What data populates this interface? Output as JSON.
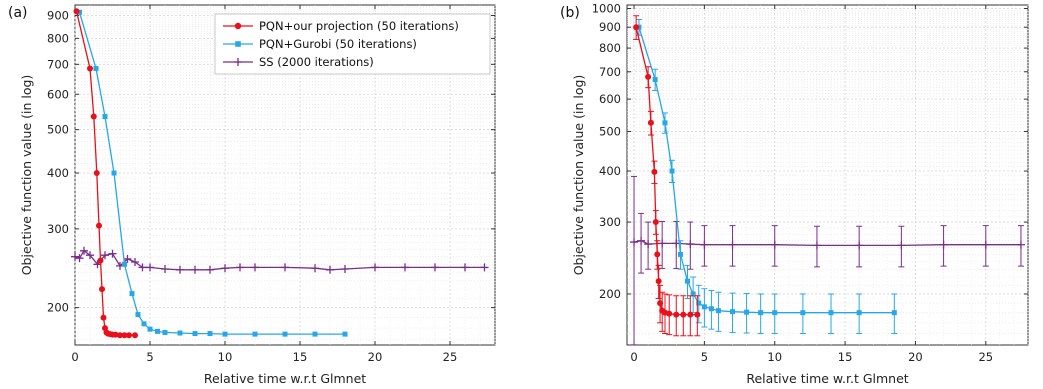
{
  "chart_data": [
    {
      "type": "line",
      "panel_label": "(a)",
      "xlabel": "Relative time w.r.t Glmnet",
      "ylabel": "Objective function value (in log)",
      "xlim": [
        0,
        28
      ],
      "ylim": [
        165,
        950
      ],
      "log_y": true,
      "grid": true,
      "legend_position": "top-right",
      "x_ticks": [
        0,
        5,
        10,
        15,
        20,
        25
      ],
      "y_ticks": [
        200,
        300,
        400,
        500,
        600,
        700,
        800,
        900
      ],
      "series": [
        {
          "name": "PQN+our projection (50 iterations)",
          "color": "#e8101a",
          "marker": "circle",
          "x": [
            0.1,
            1.0,
            1.25,
            1.45,
            1.6,
            1.7,
            1.8,
            1.9,
            2.0,
            2.1,
            2.2,
            2.35,
            2.5,
            2.7,
            3.0,
            3.3,
            3.6,
            4.0
          ],
          "y": [
            920,
            685,
            535,
            400,
            305,
            255,
            220,
            190,
            180,
            176,
            175,
            174.5,
            174,
            174,
            173.5,
            173.5,
            173.5,
            173.5
          ]
        },
        {
          "name": "PQN+Gurobi (50 iterations)",
          "color": "#27a7e8",
          "marker": "square",
          "x": [
            0.3,
            1.4,
            2.0,
            2.6,
            3.3,
            3.8,
            4.2,
            4.6,
            5.0,
            5.5,
            6.0,
            7.0,
            8.0,
            9.0,
            10.0,
            12.0,
            14.0,
            16.0,
            18.0
          ],
          "y": [
            915,
            685,
            535,
            400,
            250,
            215,
            193,
            184,
            179,
            177,
            176,
            175.5,
            175,
            175,
            174.5,
            174.5,
            174.5,
            174.5,
            174.5
          ]
        },
        {
          "name": "SS (2000 iterations)",
          "color": "#7b2d8e",
          "marker": "plus",
          "x": [
            0,
            0.3,
            0.6,
            1.0,
            1.5,
            2.0,
            2.5,
            3.0,
            3.5,
            4.0,
            4.5,
            5.0,
            6.0,
            7.0,
            8.0,
            9.0,
            10.0,
            11.0,
            12.0,
            14.0,
            16.0,
            17.0,
            18.0,
            20.0,
            22.0,
            24.0,
            26.0,
            27.3
          ],
          "y": [
            260,
            258,
            268,
            262,
            250,
            262,
            264,
            248,
            257,
            253,
            246,
            246,
            244,
            243,
            243,
            243,
            245,
            246,
            246,
            246,
            245,
            243,
            244,
            246,
            246,
            246,
            246,
            246
          ]
        }
      ]
    },
    {
      "type": "line",
      "panel_label": "(b)",
      "xlabel": "Relative time w.r.t Glmnet",
      "ylabel": "Objective function value (in log)",
      "xlim": [
        -0.5,
        28
      ],
      "ylim": [
        150,
        1020
      ],
      "log_y": true,
      "grid": true,
      "x_ticks": [
        0,
        5,
        10,
        15,
        20,
        25
      ],
      "y_ticks": [
        200,
        300,
        400,
        500,
        600,
        700,
        800,
        900,
        1000
      ],
      "series": [
        {
          "name": "PQN+our projection (50 iterations)",
          "color": "#e8101a",
          "marker": "circle",
          "x": [
            0.15,
            1.0,
            1.2,
            1.45,
            1.55,
            1.65,
            1.75,
            1.85,
            2.0,
            2.2,
            2.5,
            3.0,
            3.5,
            4.0,
            4.5
          ],
          "y": [
            900,
            680,
            525,
            398,
            300,
            250,
            215,
            190,
            182,
            180,
            179,
            178,
            178,
            178,
            178
          ],
          "err": [
            60,
            40,
            35,
            25,
            20,
            20,
            20,
            20,
            20,
            20,
            20,
            20,
            20,
            20,
            20
          ]
        },
        {
          "name": "PQN+Gurobi (50 iterations)",
          "color": "#27a7e8",
          "marker": "square",
          "x": [
            0.35,
            1.5,
            2.2,
            2.7,
            3.3,
            3.8,
            4.2,
            4.6,
            5.0,
            5.5,
            6.0,
            7.0,
            8.0,
            9.0,
            10.0,
            12.0,
            14.0,
            16.0,
            18.5
          ],
          "y": [
            900,
            670,
            525,
            400,
            250,
            215,
            200,
            190,
            186,
            184,
            182,
            181,
            180.5,
            180,
            180,
            180,
            180,
            180,
            180
          ],
          "err": [
            40,
            40,
            30,
            25,
            20,
            20,
            20,
            20,
            20,
            20,
            20,
            20,
            20,
            20,
            20,
            20,
            20,
            20,
            20
          ]
        },
        {
          "name": "SS (2000 iterations)",
          "color": "#7b2d8e",
          "marker": "plus",
          "x": [
            0,
            0.5,
            1.0,
            2.0,
            3.0,
            4.0,
            5.0,
            7.0,
            10.0,
            13.0,
            16.0,
            19.0,
            22.0,
            25.0,
            27.5
          ],
          "y": [
            268,
            270,
            265,
            266,
            266,
            265,
            264,
            264,
            264,
            263,
            263,
            263,
            264,
            264,
            264
          ],
          "err": [
            120,
            45,
            35,
            35,
            35,
            35,
            30,
            30,
            30,
            30,
            30,
            30,
            30,
            30,
            30
          ]
        }
      ]
    }
  ]
}
